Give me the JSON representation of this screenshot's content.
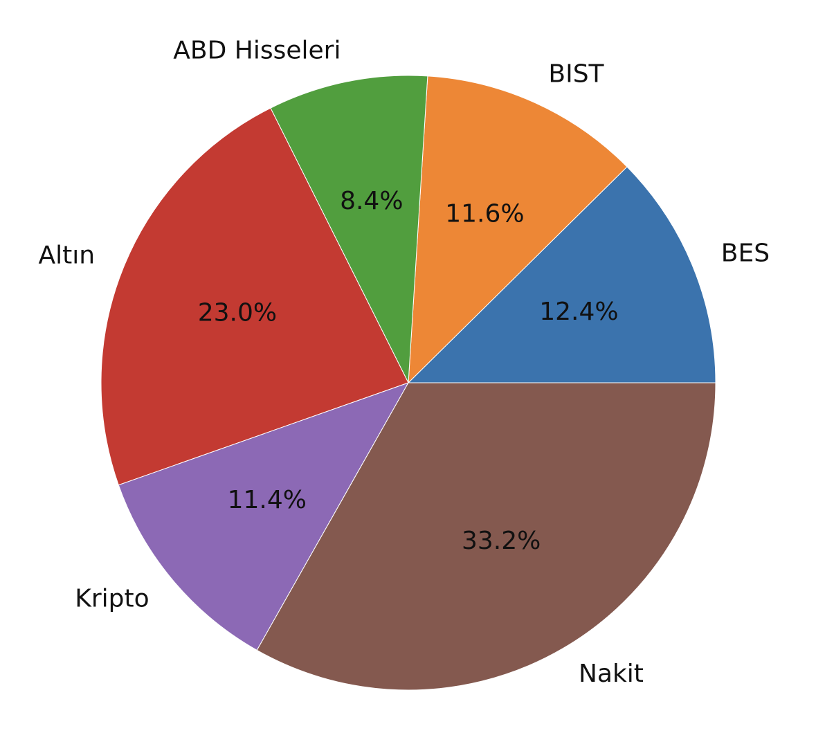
{
  "chart_data": {
    "type": "pie",
    "categories": [
      "BES",
      "BIST",
      "ABD Hisseleri",
      "Altın",
      "Kripto",
      "Nakit"
    ],
    "values": [
      12.4,
      11.6,
      8.4,
      23.0,
      11.4,
      33.2
    ],
    "value_labels": [
      "12.4%",
      "11.6%",
      "8.4%",
      "23.0%",
      "11.4%",
      "33.2%"
    ],
    "colors": [
      "#3b73ad",
      "#ed8736",
      "#519e3e",
      "#c33a32",
      "#8c69b5",
      "#84594f"
    ]
  }
}
